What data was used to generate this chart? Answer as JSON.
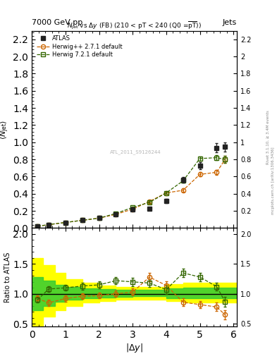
{
  "title_top_left": "7000 GeV pp",
  "title_top_right": "Jets",
  "plot_title": "$N_{\\rm jet}$ vs $\\Delta y$ (FB) (210 < pT < 240 (Q0 =$\\overline{\\rm pT}$))",
  "xlabel": "$|\\Delta y|$",
  "ylabel_main": "$\\langle N_{\\rm jet}\\rangle$",
  "ylabel_ratio": "Ratio to ATLAS",
  "ref_id": "ATL_2011_S9126244",
  "atlas_x": [
    0.17,
    0.5,
    1.0,
    1.5,
    2.0,
    2.5,
    3.0,
    3.5,
    4.0,
    4.5,
    5.0,
    5.5,
    5.75
  ],
  "atlas_y": [
    0.02,
    0.04,
    0.065,
    0.09,
    0.115,
    0.16,
    0.215,
    0.225,
    0.315,
    0.565,
    0.725,
    0.935,
    0.945
  ],
  "atlas_yerr": [
    0.003,
    0.004,
    0.005,
    0.006,
    0.007,
    0.009,
    0.012,
    0.016,
    0.022,
    0.032,
    0.042,
    0.052,
    0.052
  ],
  "hpppp_x": [
    0.17,
    0.5,
    1.0,
    1.5,
    2.0,
    2.5,
    3.0,
    3.5,
    4.0,
    4.5,
    5.0,
    5.5,
    5.75
  ],
  "hpppp_y": [
    0.02,
    0.04,
    0.065,
    0.09,
    0.115,
    0.16,
    0.22,
    0.31,
    0.41,
    0.44,
    0.625,
    0.65,
    0.8
  ],
  "hpppp_yerr": [
    0.002,
    0.003,
    0.004,
    0.005,
    0.006,
    0.008,
    0.01,
    0.012,
    0.015,
    0.02,
    0.025,
    0.03,
    0.04
  ],
  "h721_x": [
    0.17,
    0.5,
    1.0,
    1.5,
    2.0,
    2.5,
    3.0,
    3.5,
    4.0,
    4.5,
    5.0,
    5.5,
    5.75
  ],
  "h721_y": [
    0.02,
    0.04,
    0.065,
    0.09,
    0.115,
    0.17,
    0.24,
    0.3,
    0.41,
    0.55,
    0.81,
    0.82,
    0.8
  ],
  "h721_yerr": [
    0.002,
    0.003,
    0.004,
    0.005,
    0.006,
    0.008,
    0.01,
    0.012,
    0.015,
    0.02,
    0.025,
    0.03,
    0.04
  ],
  "hpppp_ratio": [
    0.92,
    0.85,
    0.92,
    0.96,
    0.97,
    1.0,
    1.03,
    1.28,
    1.14,
    0.86,
    0.82,
    0.78,
    0.65
  ],
  "hpppp_ratio_err": [
    0.05,
    0.05,
    0.05,
    0.05,
    0.05,
    0.05,
    0.06,
    0.07,
    0.07,
    0.06,
    0.06,
    0.07,
    0.08
  ],
  "h721_ratio": [
    0.9,
    1.08,
    1.1,
    1.13,
    1.15,
    1.22,
    1.2,
    1.18,
    1.07,
    1.35,
    1.28,
    1.12,
    0.87
  ],
  "h721_ratio_err": [
    0.05,
    0.05,
    0.05,
    0.06,
    0.06,
    0.06,
    0.07,
    0.07,
    0.07,
    0.07,
    0.07,
    0.07,
    0.08
  ],
  "band_edges": [
    0.0,
    0.34,
    0.68,
    1.0,
    1.5,
    2.0,
    2.5,
    3.0,
    3.5,
    4.0,
    4.5,
    5.0,
    5.5,
    6.1
  ],
  "yellow_lo": [
    0.4,
    0.62,
    0.72,
    0.8,
    0.86,
    0.88,
    0.9,
    0.9,
    0.9,
    0.88,
    0.86,
    0.86,
    0.86,
    0.86
  ],
  "yellow_hi": [
    1.6,
    1.48,
    1.35,
    1.24,
    1.18,
    1.14,
    1.12,
    1.12,
    1.12,
    1.16,
    1.18,
    1.18,
    1.18,
    1.18
  ],
  "green_lo": [
    0.72,
    0.8,
    0.87,
    0.9,
    0.93,
    0.94,
    0.95,
    0.96,
    0.96,
    0.93,
    0.93,
    0.93,
    0.93,
    0.93
  ],
  "green_hi": [
    1.28,
    1.22,
    1.15,
    1.12,
    1.09,
    1.08,
    1.07,
    1.07,
    1.07,
    1.09,
    1.1,
    1.1,
    1.1,
    1.1
  ],
  "color_atlas": "#222222",
  "color_hpppp": "#cc6600",
  "color_h721": "#336600",
  "color_yellow": "#ffff00",
  "color_green": "#33cc33",
  "background": "#ffffff",
  "ylim_main": [
    0.0,
    2.3
  ],
  "yticks_main": [
    0.0,
    0.2,
    0.4,
    0.6,
    0.8,
    1.0,
    1.2,
    1.4,
    1.6,
    1.8,
    2.0,
    2.2
  ],
  "ylim_ratio": [
    0.45,
    2.1
  ],
  "yticks_ratio": [
    0.5,
    1.0,
    1.5,
    2.0
  ],
  "xlim": [
    0.0,
    6.1
  ],
  "xticks": [
    0,
    1,
    2,
    3,
    4,
    5,
    6
  ]
}
